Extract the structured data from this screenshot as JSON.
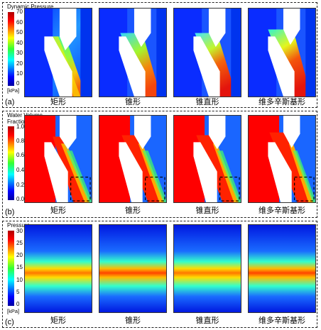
{
  "panels": [
    {
      "letter": "(a)",
      "colorbar_title": "Dynamic Pressure",
      "unit": "[kPa]",
      "ticks": [
        "70",
        "60",
        "50",
        "40",
        "30",
        "20",
        "10",
        "0"
      ],
      "labels": [
        "矩形",
        "锥形",
        "锥直形",
        "维多辛斯基形"
      ]
    },
    {
      "letter": "(b)",
      "colorbar_title": "Water Volume\nFraction",
      "unit": "",
      "ticks": [
        "1.0",
        "0.8",
        "0.6",
        "0.4",
        "0.2",
        "0.0"
      ],
      "labels": [
        "矩形",
        "锥形",
        "锥直形",
        "维多辛斯基形"
      ]
    },
    {
      "letter": "(c)",
      "colorbar_title": "Pressure",
      "unit": "[kPa]",
      "ticks": [
        "30",
        "25",
        "20",
        "15",
        "10",
        "5",
        "0"
      ],
      "labels": [
        "矩形",
        "锥形",
        "锥直形",
        "维多辛斯基形"
      ]
    }
  ]
}
